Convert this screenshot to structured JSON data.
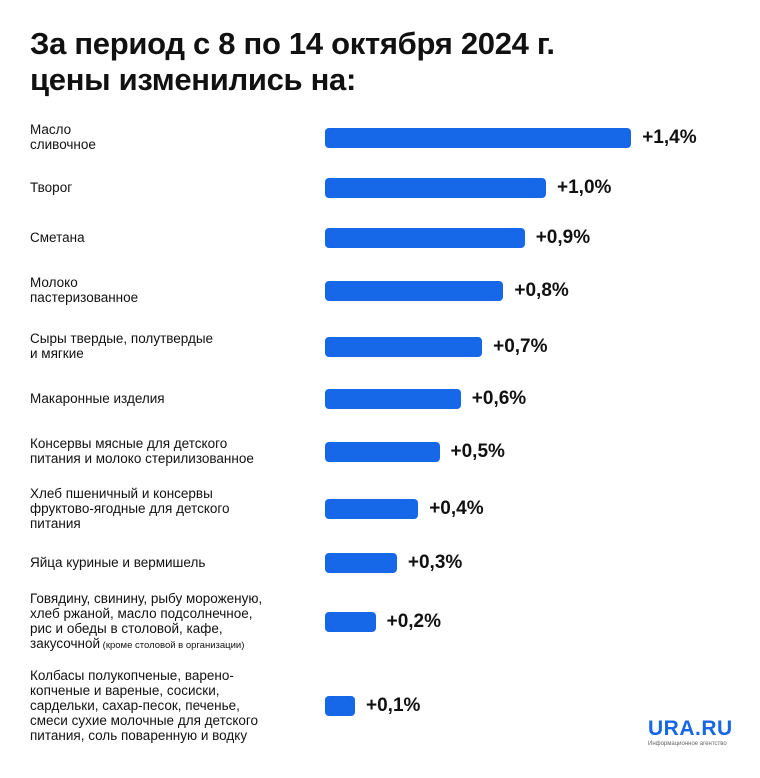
{
  "title_lines": [
    "За период с 8 по 14 октября 2024 г.",
    "цены изменились на:"
  ],
  "colors": {
    "bar": "#1768e8",
    "text": "#111111",
    "logo": "#1768e8"
  },
  "logo": {
    "name": "URA.RU",
    "tagline": "Информационное агентство"
  },
  "chart_data": {
    "type": "bar",
    "orientation": "horizontal",
    "unit": "%",
    "categories": [
      [
        "Масло",
        "сливочное"
      ],
      [
        "Творог"
      ],
      [
        "Сметана"
      ],
      [
        "Молоко",
        "пастеризованное"
      ],
      [
        "Сыры твердые, полутвердые",
        "и мягкие"
      ],
      [
        "Макаронные изделия"
      ],
      [
        "Консервы мясные для детского",
        "питания и молоко стерилизованное"
      ],
      [
        "Хлеб пшеничный и консервы",
        "фруктово-ягодные для детского",
        "питания"
      ],
      [
        "Яйца куриные и вермишель"
      ],
      [
        "Говядину, свинину, рыбу мороженую,",
        "хлеб ржаной, масло подсолнечное,",
        "рис и обеды в столовой, кафе,",
        "закусочной"
      ],
      [
        "Колбасы полукопченые, варено-",
        "копченые и вареные, сосиски,",
        "сардельки, сахар-песок, печенье,",
        "смеси сухие молочные для детского",
        "питания, соль поваренную и водку"
      ]
    ],
    "category_notes": [
      "",
      "",
      "",
      "",
      "",
      "",
      "",
      "",
      "",
      "(кроме столовой в организации)",
      ""
    ],
    "values": [
      1.4,
      1.0,
      0.9,
      0.8,
      0.7,
      0.6,
      0.5,
      0.4,
      0.3,
      0.2,
      0.1
    ],
    "value_labels": [
      "+1,4%",
      "+1,0%",
      "+0,9%",
      "+0,8%",
      "+0,7%",
      "+0,6%",
      "+0,5%",
      "+0,4%",
      "+0,3%",
      "+0,2%",
      "+0,1%"
    ]
  }
}
